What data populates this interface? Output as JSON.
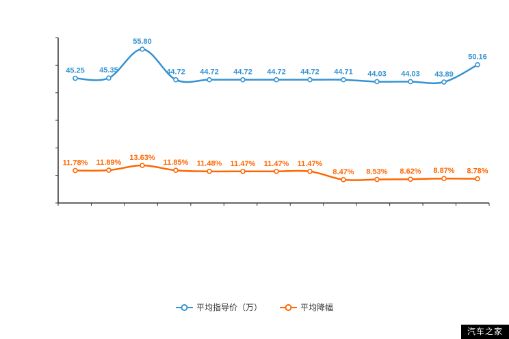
{
  "watermark": "汽车之家",
  "chart_data": {
    "type": "line",
    "title": "",
    "xlabel": "",
    "ylabel": "",
    "ylim": [
      0,
      60
    ],
    "grid": false,
    "legend_position": "bottom",
    "x_count": 13,
    "axis_color": "#333333",
    "series": [
      {
        "name": "平均指导价（万）",
        "color": "#3492d2",
        "suffix": "",
        "values": [
          45.25,
          45.35,
          55.8,
          44.72,
          44.72,
          44.72,
          44.72,
          44.72,
          44.71,
          44.03,
          44.03,
          43.89,
          50.16
        ]
      },
      {
        "name": "平均降幅",
        "color": "#ff6600",
        "suffix": "%",
        "values": [
          11.78,
          11.89,
          13.63,
          11.85,
          11.48,
          11.47,
          11.47,
          11.47,
          8.47,
          8.53,
          8.62,
          8.87,
          8.78
        ]
      }
    ]
  }
}
